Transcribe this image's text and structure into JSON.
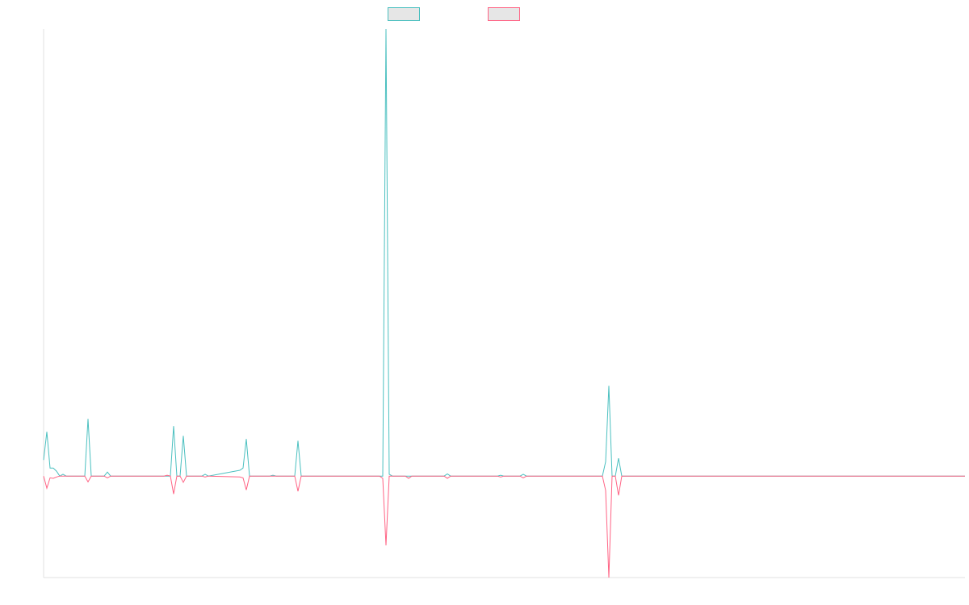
{
  "chart_data": {
    "type": "line",
    "xlim": [
      0,
      1141
    ],
    "ylim": [
      -22.7,
      100
    ],
    "grid": false,
    "legend": "top",
    "series": [
      {
        "color": "#4bc0c0",
        "x": [
          0,
          4,
          8,
          12,
          16,
          20,
          24,
          28,
          51,
          55,
          59,
          75,
          79,
          83,
          149,
          153,
          157,
          161,
          165,
          169,
          173,
          177,
          196,
          200,
          204,
          243,
          247,
          251,
          255,
          280,
          284,
          288,
          311,
          315,
          319,
          420,
          424,
          428,
          432,
          496,
          500,
          504,
          562,
          566,
          570,
          590,
          594,
          598,
          692,
          696,
          700,
          704,
          708,
          712,
          716,
          1141
        ],
        "values": [
          3.6,
          9.9,
          1.8,
          1.8,
          1.1,
          0,
          0.4,
          0,
          0,
          12.8,
          0,
          0,
          0.9,
          0,
          0,
          0,
          0,
          11.2,
          0,
          0,
          9.0,
          0,
          0,
          0.4,
          0,
          1.3,
          1.8,
          8.3,
          0,
          0,
          0.2,
          0,
          0,
          7.9,
          0,
          0,
          100,
          0.4,
          0,
          0,
          0.5,
          0,
          0,
          0.2,
          0,
          0,
          0.4,
          0,
          0,
          3.2,
          20.2,
          0,
          0,
          4.0,
          0,
          0
        ]
      },
      {
        "color": "#ff6384",
        "x": [
          0,
          4,
          8,
          12,
          16,
          20,
          51,
          55,
          59,
          75,
          79,
          83,
          149,
          153,
          157,
          161,
          165,
          169,
          173,
          177,
          196,
          200,
          204,
          243,
          247,
          251,
          255,
          311,
          315,
          319,
          416,
          420,
          424,
          428,
          448,
          452,
          456,
          496,
          500,
          504,
          562,
          566,
          570,
          590,
          594,
          598,
          692,
          696,
          700,
          704,
          708,
          712,
          716,
          1141
        ],
        "values": [
          0,
          -2.7,
          -0.4,
          -0.5,
          -0.2,
          0,
          0,
          -1.3,
          0,
          0,
          -0.4,
          0,
          0,
          0.2,
          0,
          -4.0,
          0,
          0,
          -1.4,
          0,
          0,
          -0.2,
          0,
          -0.2,
          -0.4,
          -3.1,
          0,
          0,
          -3.4,
          0,
          0,
          -0.5,
          -15.5,
          0,
          0,
          -0.5,
          0,
          0,
          -0.5,
          0,
          0,
          -0.2,
          0,
          0,
          -0.4,
          0,
          0,
          -3.2,
          -22.7,
          0,
          0,
          -4.3,
          0,
          0
        ]
      }
    ]
  }
}
